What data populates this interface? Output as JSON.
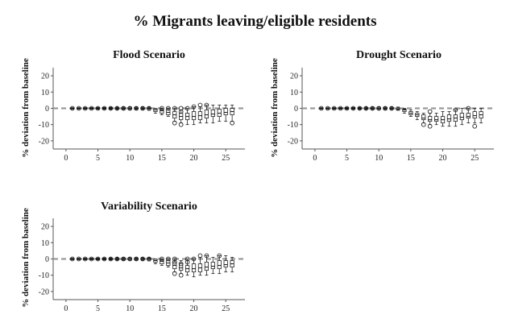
{
  "page_title": "% Migrants leaving/eligible residents",
  "chart_data": [
    {
      "type": "box",
      "title": "Flood Scenario",
      "xlabel": "",
      "ylabel": "% deviation from baseline",
      "xlim": [
        -2,
        28
      ],
      "ylim": [
        -25,
        25
      ],
      "x_ticks": [
        0,
        5,
        10,
        15,
        20,
        25
      ],
      "y_ticks": [
        20,
        10,
        0,
        -10,
        -20
      ],
      "baseline": 0,
      "boxes": [
        {
          "x": 1,
          "q1": -0.2,
          "med": 0,
          "q3": 0.2,
          "wlo": -0.4,
          "whi": 0.4,
          "out": [
            0
          ]
        },
        {
          "x": 2,
          "q1": -0.2,
          "med": 0,
          "q3": 0.2,
          "wlo": -0.4,
          "whi": 0.4,
          "out": [
            0
          ]
        },
        {
          "x": 3,
          "q1": -0.2,
          "med": 0,
          "q3": 0.2,
          "wlo": -0.5,
          "whi": 0.5,
          "out": [
            0
          ]
        },
        {
          "x": 4,
          "q1": -0.3,
          "med": 0,
          "q3": 0.3,
          "wlo": -0.5,
          "whi": 0.5,
          "out": [
            0
          ]
        },
        {
          "x": 5,
          "q1": -0.3,
          "med": 0,
          "q3": 0.3,
          "wlo": -0.6,
          "whi": 0.6,
          "out": [
            0
          ]
        },
        {
          "x": 6,
          "q1": -0.3,
          "med": 0,
          "q3": 0.3,
          "wlo": -0.6,
          "whi": 0.6,
          "out": [
            0
          ]
        },
        {
          "x": 7,
          "q1": -0.3,
          "med": 0,
          "q3": 0.3,
          "wlo": -0.7,
          "whi": 0.7,
          "out": [
            0
          ]
        },
        {
          "x": 8,
          "q1": -0.4,
          "med": 0,
          "q3": 0.4,
          "wlo": -0.8,
          "whi": 0.8,
          "out": [
            0
          ]
        },
        {
          "x": 9,
          "q1": -0.5,
          "med": 0,
          "q3": 0.5,
          "wlo": -1,
          "whi": 1,
          "out": [
            0
          ]
        },
        {
          "x": 10,
          "q1": -0.6,
          "med": 0,
          "q3": 0.6,
          "wlo": -1,
          "whi": 1,
          "out": [
            0
          ]
        },
        {
          "x": 11,
          "q1": -0.5,
          "med": 0,
          "q3": 0.5,
          "wlo": -1,
          "whi": 1,
          "out": [
            0
          ]
        },
        {
          "x": 12,
          "q1": -0.5,
          "med": 0,
          "q3": 0.5,
          "wlo": -1,
          "whi": 1,
          "out": [
            0
          ]
        },
        {
          "x": 13,
          "q1": -0.6,
          "med": 0,
          "q3": 0.5,
          "wlo": -1.2,
          "whi": 1,
          "out": [
            0
          ]
        },
        {
          "x": 14,
          "q1": -2,
          "med": -1,
          "q3": -0.2,
          "wlo": -3,
          "whi": 0,
          "out": []
        },
        {
          "x": 15,
          "q1": -3,
          "med": -1.5,
          "q3": -0.5,
          "wlo": -4,
          "whi": 0,
          "out": [
            0
          ]
        },
        {
          "x": 16,
          "q1": -4,
          "med": -2.5,
          "q3": -1,
          "wlo": -5,
          "whi": 0,
          "out": [
            0
          ]
        },
        {
          "x": 17,
          "q1": -6,
          "med": -4,
          "q3": -2,
          "wlo": -8,
          "whi": 0,
          "out": [
            -9,
            0
          ]
        },
        {
          "x": 18,
          "q1": -7,
          "med": -5,
          "q3": -3,
          "wlo": -9,
          "whi": -1,
          "out": [
            -10,
            -2,
            0
          ]
        },
        {
          "x": 19,
          "q1": -7,
          "med": -5,
          "q3": -3,
          "wlo": -10,
          "whi": 0,
          "out": [
            0
          ]
        },
        {
          "x": 20,
          "q1": -7,
          "med": -5,
          "q3": -2,
          "wlo": -10,
          "whi": 1,
          "out": [
            1
          ]
        },
        {
          "x": 21,
          "q1": -7,
          "med": -4.5,
          "q3": -2,
          "wlo": -9,
          "whi": 1,
          "out": [
            2
          ]
        },
        {
          "x": 22,
          "q1": -6,
          "med": -4,
          "q3": -1,
          "wlo": -9,
          "whi": 2,
          "out": [
            2
          ]
        },
        {
          "x": 23,
          "q1": -5,
          "med": -3.5,
          "q3": -1,
          "wlo": -9,
          "whi": 2,
          "out": []
        },
        {
          "x": 24,
          "q1": -5,
          "med": -3,
          "q3": -0.5,
          "wlo": -8,
          "whi": 2,
          "out": []
        },
        {
          "x": 25,
          "q1": -4,
          "med": -2.5,
          "q3": 0,
          "wlo": -8,
          "whi": 2,
          "out": []
        },
        {
          "x": 26,
          "q1": -4,
          "med": -2,
          "q3": 0,
          "wlo": -8,
          "whi": 2,
          "out": [
            -9
          ]
        }
      ]
    },
    {
      "type": "box",
      "title": "Drought Scenario",
      "xlabel": "",
      "ylabel": "% deviation from baseline",
      "xlim": [
        -2,
        28
      ],
      "ylim": [
        -25,
        25
      ],
      "x_ticks": [
        0,
        5,
        10,
        15,
        20,
        25
      ],
      "y_ticks": [
        20,
        10,
        0,
        -10,
        -20
      ],
      "baseline": 0,
      "boxes": [
        {
          "x": 1,
          "q1": -0.2,
          "med": 0,
          "q3": 0.2,
          "wlo": -0.4,
          "whi": 0.4,
          "out": [
            0
          ]
        },
        {
          "x": 2,
          "q1": -0.2,
          "med": 0,
          "q3": 0.2,
          "wlo": -0.4,
          "whi": 0.4,
          "out": [
            0
          ]
        },
        {
          "x": 3,
          "q1": -0.2,
          "med": 0,
          "q3": 0.2,
          "wlo": -0.5,
          "whi": 0.5,
          "out": [
            0
          ]
        },
        {
          "x": 4,
          "q1": -0.3,
          "med": 0,
          "q3": 0.3,
          "wlo": -0.5,
          "whi": 0.5,
          "out": [
            0
          ]
        },
        {
          "x": 5,
          "q1": -0.3,
          "med": 0,
          "q3": 0.3,
          "wlo": -0.6,
          "whi": 0.6,
          "out": [
            0
          ]
        },
        {
          "x": 6,
          "q1": -0.3,
          "med": 0,
          "q3": 0.3,
          "wlo": -0.6,
          "whi": 0.6,
          "out": [
            0
          ]
        },
        {
          "x": 7,
          "q1": -0.3,
          "med": 0,
          "q3": 0.3,
          "wlo": -0.7,
          "whi": 0.7,
          "out": [
            0
          ]
        },
        {
          "x": 8,
          "q1": -0.4,
          "med": 0,
          "q3": 0.4,
          "wlo": -0.8,
          "whi": 0.8,
          "out": [
            0
          ]
        },
        {
          "x": 9,
          "q1": -0.5,
          "med": 0,
          "q3": 0.5,
          "wlo": -1,
          "whi": 1,
          "out": [
            0
          ]
        },
        {
          "x": 10,
          "q1": -0.6,
          "med": 0,
          "q3": 0.6,
          "wlo": -1,
          "whi": 1,
          "out": [
            0
          ]
        },
        {
          "x": 11,
          "q1": -0.5,
          "med": 0,
          "q3": 0.5,
          "wlo": -1,
          "whi": 1,
          "out": [
            0
          ]
        },
        {
          "x": 12,
          "q1": -0.5,
          "med": 0,
          "q3": 0.5,
          "wlo": -1,
          "whi": 1,
          "out": [
            0
          ]
        },
        {
          "x": 13,
          "q1": -0.8,
          "med": -0.3,
          "q3": 0.3,
          "wlo": -1.2,
          "whi": 0.8,
          "out": []
        },
        {
          "x": 14,
          "q1": -2,
          "med": -1,
          "q3": -0.5,
          "wlo": -3,
          "whi": 0,
          "out": []
        },
        {
          "x": 15,
          "q1": -4,
          "med": -3,
          "q3": -2,
          "wlo": -5,
          "whi": -1,
          "out": []
        },
        {
          "x": 16,
          "q1": -5,
          "med": -4,
          "q3": -3,
          "wlo": -7,
          "whi": -2,
          "out": []
        },
        {
          "x": 17,
          "q1": -7,
          "med": -6,
          "q3": -4,
          "wlo": -9,
          "whi": -3,
          "out": [
            -10
          ]
        },
        {
          "x": 18,
          "q1": -8,
          "med": -7,
          "q3": -5,
          "wlo": -10,
          "whi": -3,
          "out": [
            -11,
            -2
          ]
        },
        {
          "x": 19,
          "q1": -8,
          "med": -7,
          "q3": -5,
          "wlo": -10,
          "whi": -3,
          "out": []
        },
        {
          "x": 20,
          "q1": -9,
          "med": -7,
          "q3": -5,
          "wlo": -11,
          "whi": -2,
          "out": []
        },
        {
          "x": 21,
          "q1": -8,
          "med": -6.5,
          "q3": -4,
          "wlo": -11,
          "whi": -2,
          "out": []
        },
        {
          "x": 22,
          "q1": -8,
          "med": -6,
          "q3": -4,
          "wlo": -11,
          "whi": -1,
          "out": [
            -1
          ]
        },
        {
          "x": 23,
          "q1": -7,
          "med": -5.5,
          "q3": -3,
          "wlo": -10,
          "whi": 0,
          "out": []
        },
        {
          "x": 24,
          "q1": -6,
          "med": -5,
          "q3": -3,
          "wlo": -9,
          "whi": 0,
          "out": [
            0
          ]
        },
        {
          "x": 25,
          "q1": -6,
          "med": -4.5,
          "q3": -2,
          "wlo": -9,
          "whi": 0,
          "out": [
            -11
          ]
        },
        {
          "x": 26,
          "q1": -6,
          "med": -4,
          "q3": -2,
          "wlo": -9,
          "whi": 0,
          "out": []
        }
      ]
    },
    {
      "type": "box",
      "title": "Variability Scenario",
      "xlabel": "",
      "ylabel": "% deviation from baseline",
      "xlim": [
        -2,
        28
      ],
      "ylim": [
        -25,
        25
      ],
      "x_ticks": [
        0,
        5,
        10,
        15,
        20,
        25
      ],
      "y_ticks": [
        20,
        10,
        0,
        -10,
        -20
      ],
      "baseline": 0,
      "boxes": [
        {
          "x": 1,
          "q1": -0.2,
          "med": 0,
          "q3": 0.2,
          "wlo": -0.4,
          "whi": 0.4,
          "out": [
            0
          ]
        },
        {
          "x": 2,
          "q1": -0.2,
          "med": 0,
          "q3": 0.2,
          "wlo": -0.4,
          "whi": 0.4,
          "out": [
            0
          ]
        },
        {
          "x": 3,
          "q1": -0.2,
          "med": 0,
          "q3": 0.2,
          "wlo": -0.5,
          "whi": 0.5,
          "out": [
            0
          ]
        },
        {
          "x": 4,
          "q1": -0.3,
          "med": 0,
          "q3": 0.3,
          "wlo": -0.5,
          "whi": 0.5,
          "out": [
            0
          ]
        },
        {
          "x": 5,
          "q1": -0.3,
          "med": 0,
          "q3": 0.3,
          "wlo": -0.6,
          "whi": 0.6,
          "out": [
            0
          ]
        },
        {
          "x": 6,
          "q1": -0.3,
          "med": 0,
          "q3": 0.3,
          "wlo": -0.6,
          "whi": 0.6,
          "out": [
            0
          ]
        },
        {
          "x": 7,
          "q1": -0.3,
          "med": 0,
          "q3": 0.3,
          "wlo": -0.7,
          "whi": 0.7,
          "out": [
            0
          ]
        },
        {
          "x": 8,
          "q1": -0.4,
          "med": 0,
          "q3": 0.4,
          "wlo": -0.8,
          "whi": 0.8,
          "out": [
            0
          ]
        },
        {
          "x": 9,
          "q1": -0.5,
          "med": 0,
          "q3": 0.5,
          "wlo": -1,
          "whi": 1,
          "out": [
            0
          ]
        },
        {
          "x": 10,
          "q1": -0.6,
          "med": 0,
          "q3": 0.6,
          "wlo": -1,
          "whi": 1,
          "out": [
            0
          ]
        },
        {
          "x": 11,
          "q1": -0.5,
          "med": 0,
          "q3": 0.5,
          "wlo": -1,
          "whi": 1,
          "out": [
            0
          ]
        },
        {
          "x": 12,
          "q1": -0.5,
          "med": 0,
          "q3": 0.5,
          "wlo": -1,
          "whi": 1,
          "out": [
            0
          ]
        },
        {
          "x": 13,
          "q1": -0.6,
          "med": 0,
          "q3": 0.5,
          "wlo": -1.2,
          "whi": 1,
          "out": [
            0
          ]
        },
        {
          "x": 14,
          "q1": -2,
          "med": -1,
          "q3": -0.2,
          "wlo": -3,
          "whi": 0,
          "out": []
        },
        {
          "x": 15,
          "q1": -3,
          "med": -1.5,
          "q3": -0.5,
          "wlo": -4,
          "whi": 0,
          "out": [
            0
          ]
        },
        {
          "x": 16,
          "q1": -4,
          "med": -2.5,
          "q3": -1,
          "wlo": -5,
          "whi": 0,
          "out": [
            0
          ]
        },
        {
          "x": 17,
          "q1": -6,
          "med": -4,
          "q3": -2,
          "wlo": -8,
          "whi": 0,
          "out": [
            -9,
            -2,
            0
          ]
        },
        {
          "x": 18,
          "q1": -7,
          "med": -5.5,
          "q3": -3,
          "wlo": -9,
          "whi": -1,
          "out": [
            -10,
            -3
          ]
        },
        {
          "x": 19,
          "q1": -8,
          "med": -6,
          "q3": -4,
          "wlo": -10,
          "whi": 0,
          "out": [
            -2,
            0
          ]
        },
        {
          "x": 20,
          "q1": -8,
          "med": -6,
          "q3": -3,
          "wlo": -11,
          "whi": 0,
          "out": [
            0
          ]
        },
        {
          "x": 21,
          "q1": -8,
          "med": -5.5,
          "q3": -3,
          "wlo": -10,
          "whi": 1,
          "out": [
            2
          ]
        },
        {
          "x": 22,
          "q1": -7,
          "med": -5,
          "q3": -2,
          "wlo": -10,
          "whi": 2,
          "out": [
            2
          ]
        },
        {
          "x": 23,
          "q1": -6,
          "med": -4.5,
          "q3": -2,
          "wlo": -9,
          "whi": 1,
          "out": []
        },
        {
          "x": 24,
          "q1": -6,
          "med": -4,
          "q3": -1,
          "wlo": -9,
          "whi": 2,
          "out": [
            2
          ]
        },
        {
          "x": 25,
          "q1": -5,
          "med": -3.5,
          "q3": -1,
          "wlo": -8,
          "whi": 2,
          "out": []
        },
        {
          "x": 26,
          "q1": -5,
          "med": -3,
          "q3": -1,
          "wlo": -8,
          "whi": 1,
          "out": []
        }
      ]
    }
  ]
}
